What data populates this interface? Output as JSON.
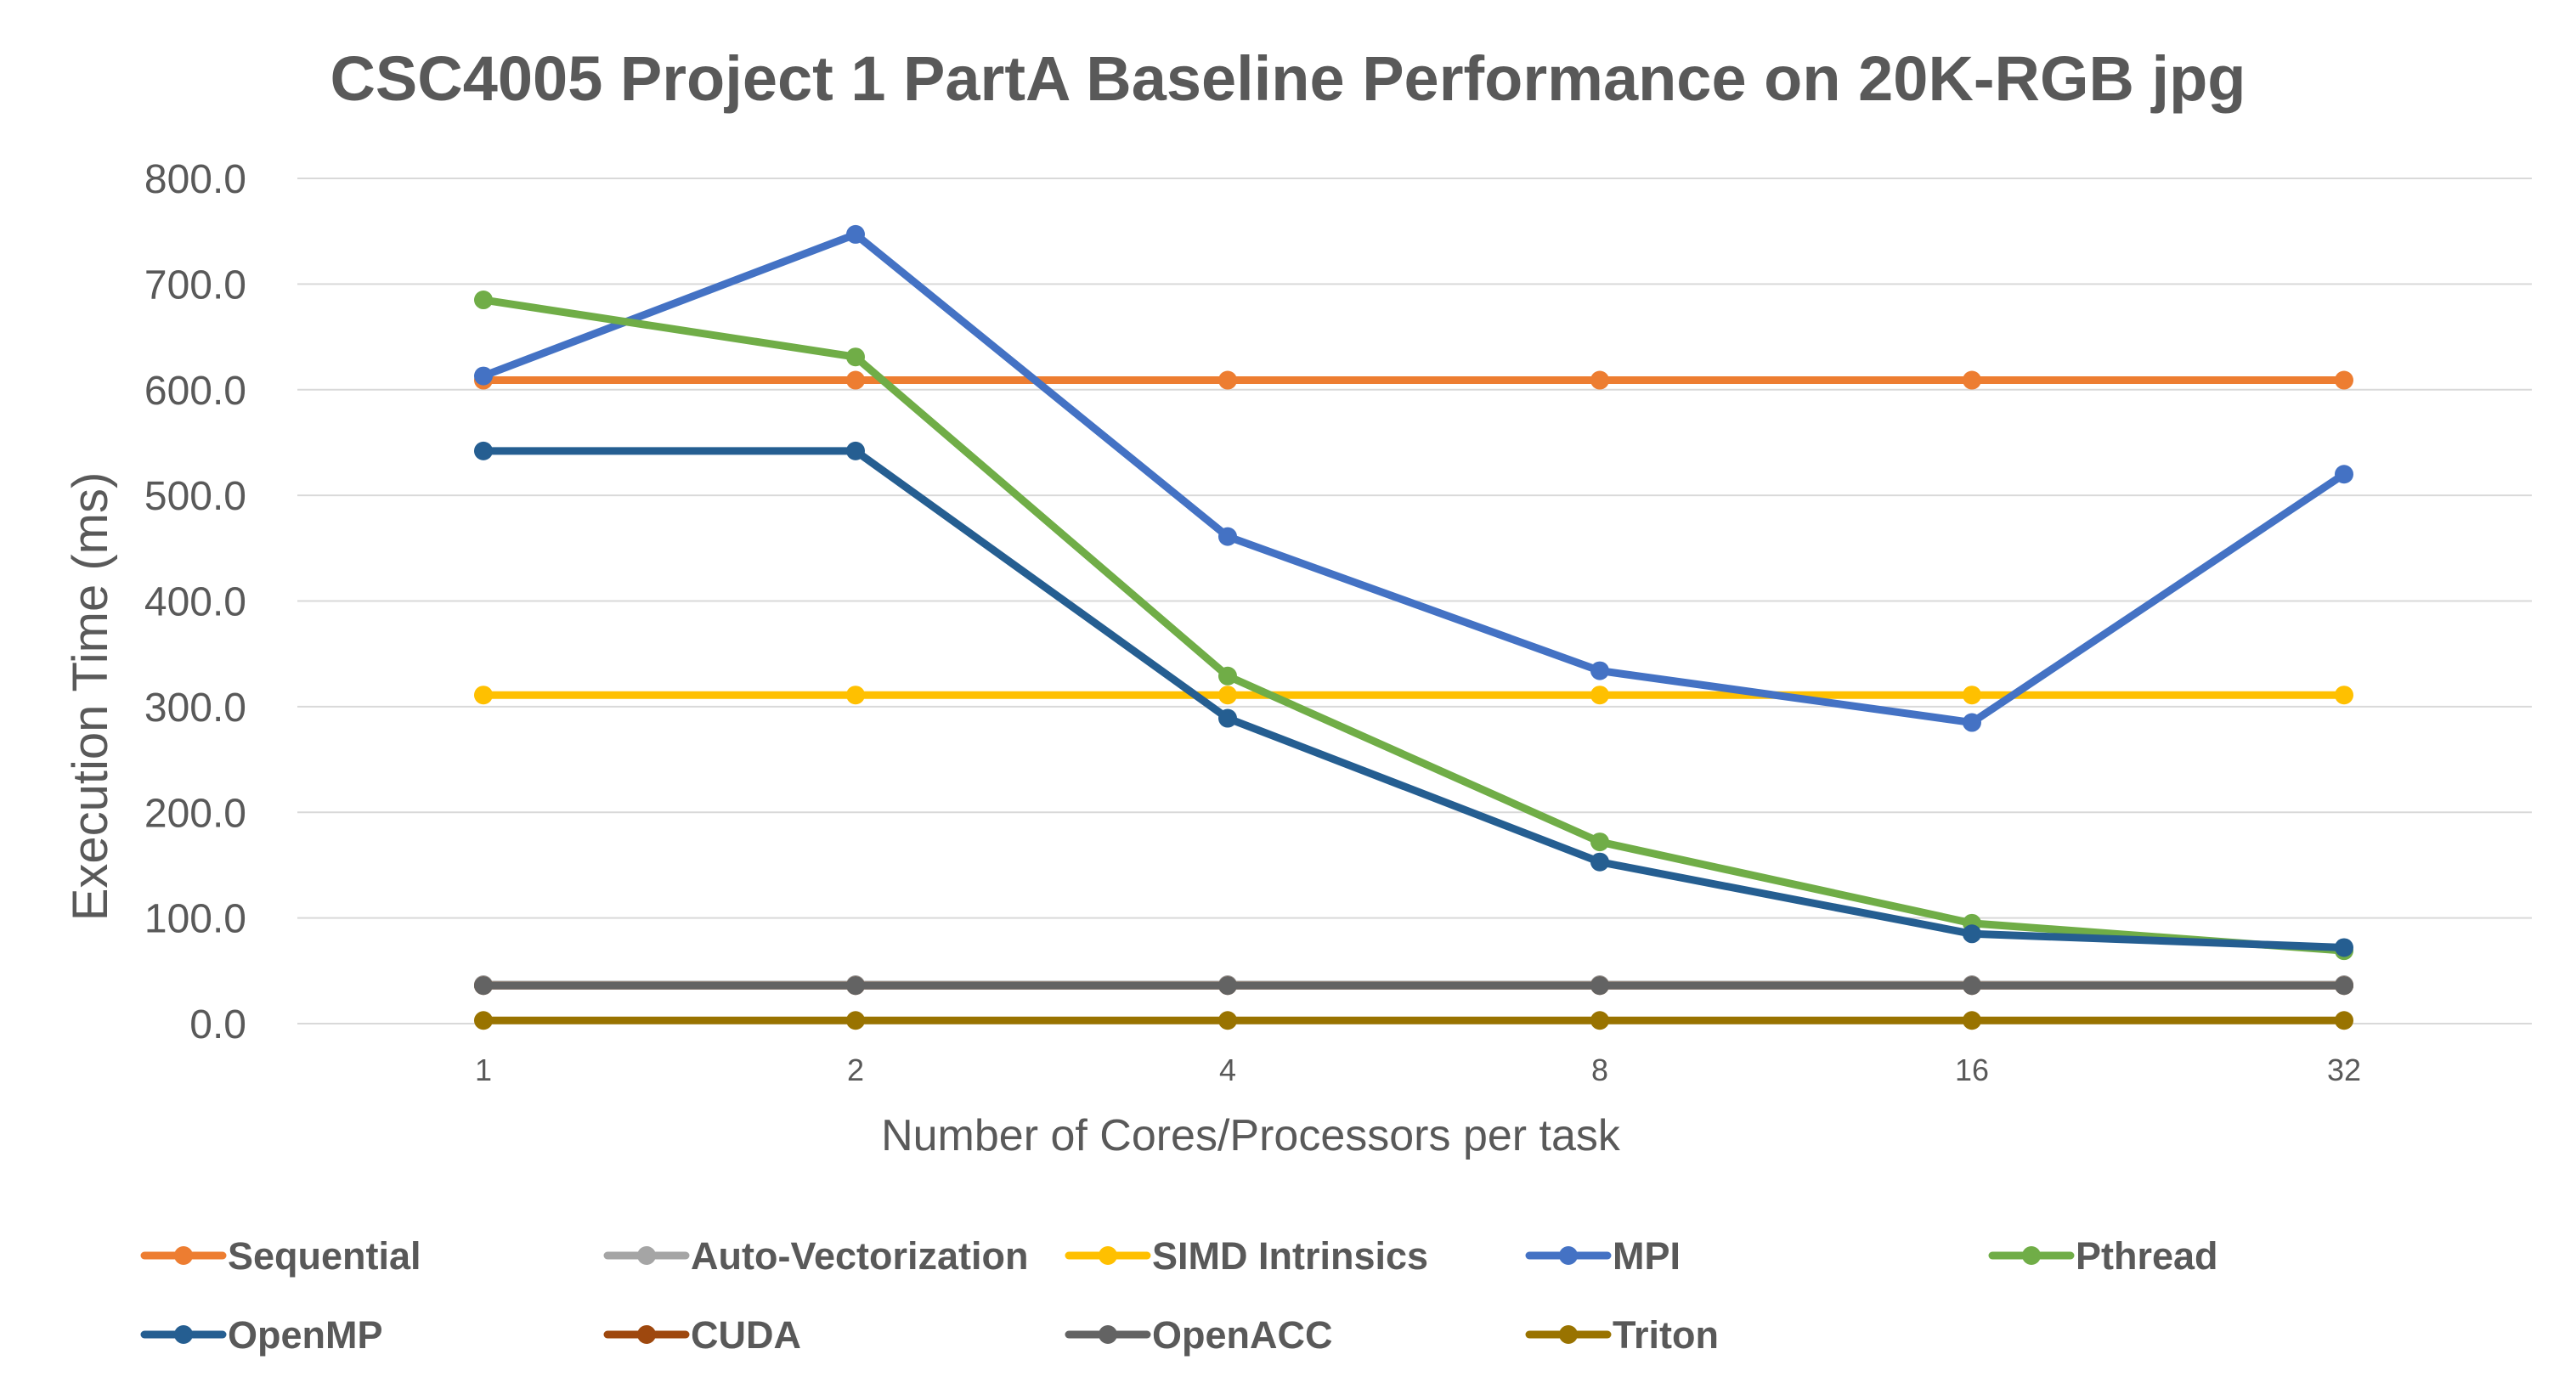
{
  "chart_data": {
    "type": "line",
    "title": "CSC4005 Project 1 PartA Baseline Performance on 20K-RGB jpg",
    "xlabel": "Number of Cores/Processors per task",
    "ylabel": "Execution Time (ms)",
    "categories": [
      "1",
      "2",
      "4",
      "8",
      "16",
      "32"
    ],
    "ylim": [
      0,
      800
    ],
    "yticks": [
      "0.0",
      "100.0",
      "200.0",
      "300.0",
      "400.0",
      "500.0",
      "600.0",
      "700.0",
      "800.0"
    ],
    "grid": true,
    "legend_position": "bottom",
    "series": [
      {
        "name": "Sequential",
        "color": "#ED7D31",
        "values": [
          609,
          609,
          609,
          609,
          609,
          609
        ]
      },
      {
        "name": "Auto-Vectorization",
        "color": "#A5A5A5",
        "values": [
          37,
          37,
          37,
          37,
          37,
          37
        ]
      },
      {
        "name": "SIMD Intrinsics",
        "color": "#FFC000",
        "values": [
          311,
          311,
          311,
          311,
          311,
          311
        ]
      },
      {
        "name": "MPI",
        "color": "#4472C4",
        "values": [
          613,
          747,
          461,
          334,
          285,
          520
        ]
      },
      {
        "name": "Pthread",
        "color": "#70AD47",
        "values": [
          685,
          631,
          329,
          172,
          95,
          69
        ]
      },
      {
        "name": "OpenMP",
        "color": "#255E91",
        "values": [
          542,
          542,
          289,
          153,
          85,
          72
        ]
      },
      {
        "name": "CUDA",
        "color": "#9E480E",
        "values": [
          36,
          36,
          36,
          36,
          36,
          36
        ]
      },
      {
        "name": "OpenACC",
        "color": "#636363",
        "values": [
          36,
          36,
          36,
          36,
          36,
          36
        ]
      },
      {
        "name": "Triton",
        "color": "#997300",
        "values": [
          3,
          3,
          3,
          3,
          3,
          3
        ]
      }
    ]
  }
}
